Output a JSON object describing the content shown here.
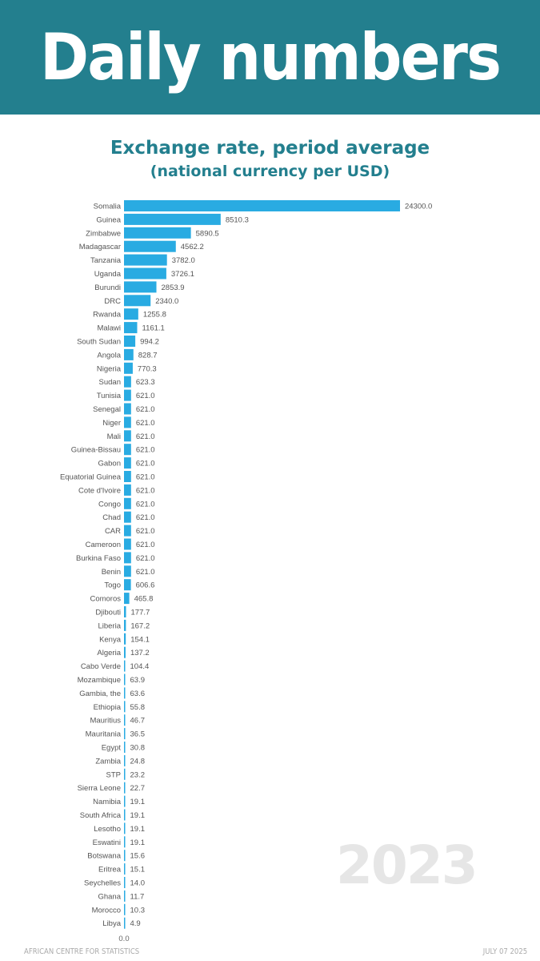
{
  "header": {
    "title": "Daily numbers"
  },
  "watermark_year": "2023",
  "footer": {
    "left": "AFRICAN CENTRE FOR STATISTICS",
    "right": "JULY 07 2025"
  },
  "chart_data": {
    "type": "bar",
    "orientation": "horizontal",
    "title": "Exchange rate, period average",
    "subtitle": "(national currency per USD)",
    "xlabel": "",
    "ylabel": "",
    "x_tick_labels": [
      "0.0"
    ],
    "color": "#29abe2",
    "categories": [
      "Somalia",
      "Guinea",
      "Zimbabwe",
      "Madagascar",
      "Tanzania",
      "Uganda",
      "Burundi",
      "DRC",
      "Rwanda",
      "Malawi",
      "South Sudan",
      "Angola",
      "Nigeria",
      "Sudan",
      "Tunisia",
      "Senegal",
      "Niger",
      "Mali",
      "Guinea-Bissau",
      "Gabon",
      "Equatorial Guinea",
      "Cote d'Ivoire",
      "Congo",
      "Chad",
      "CAR",
      "Cameroon",
      "Burkina Faso",
      "Benin",
      "Togo",
      "Comoros",
      "Djibouti",
      "Liberia",
      "Kenya",
      "Algeria",
      "Cabo Verde",
      "Mozambique",
      "Gambia, the",
      "Ethiopia",
      "Mauritius",
      "Mauritania",
      "Egypt",
      "Zambia",
      "STP",
      "Sierra Leone",
      "Namibia",
      "South Africa",
      "Lesotho",
      "Eswatini",
      "Botswana",
      "Eritrea",
      "Seychelles",
      "Ghana",
      "Morocco",
      "Libya"
    ],
    "values": [
      24300.0,
      8510.3,
      5890.5,
      4562.2,
      3782.0,
      3726.1,
      2853.9,
      2340.0,
      1255.8,
      1161.1,
      994.2,
      828.7,
      770.3,
      623.3,
      621.0,
      621.0,
      621.0,
      621.0,
      621.0,
      621.0,
      621.0,
      621.0,
      621.0,
      621.0,
      621.0,
      621.0,
      621.0,
      621.0,
      606.6,
      465.8,
      177.7,
      167.2,
      154.1,
      137.2,
      104.4,
      63.9,
      63.6,
      55.8,
      46.7,
      36.5,
      30.8,
      24.8,
      23.2,
      22.7,
      19.1,
      19.1,
      19.1,
      19.1,
      15.6,
      15.1,
      14.0,
      11.7,
      10.3,
      4.9
    ],
    "xlim": [
      0,
      24300
    ]
  }
}
